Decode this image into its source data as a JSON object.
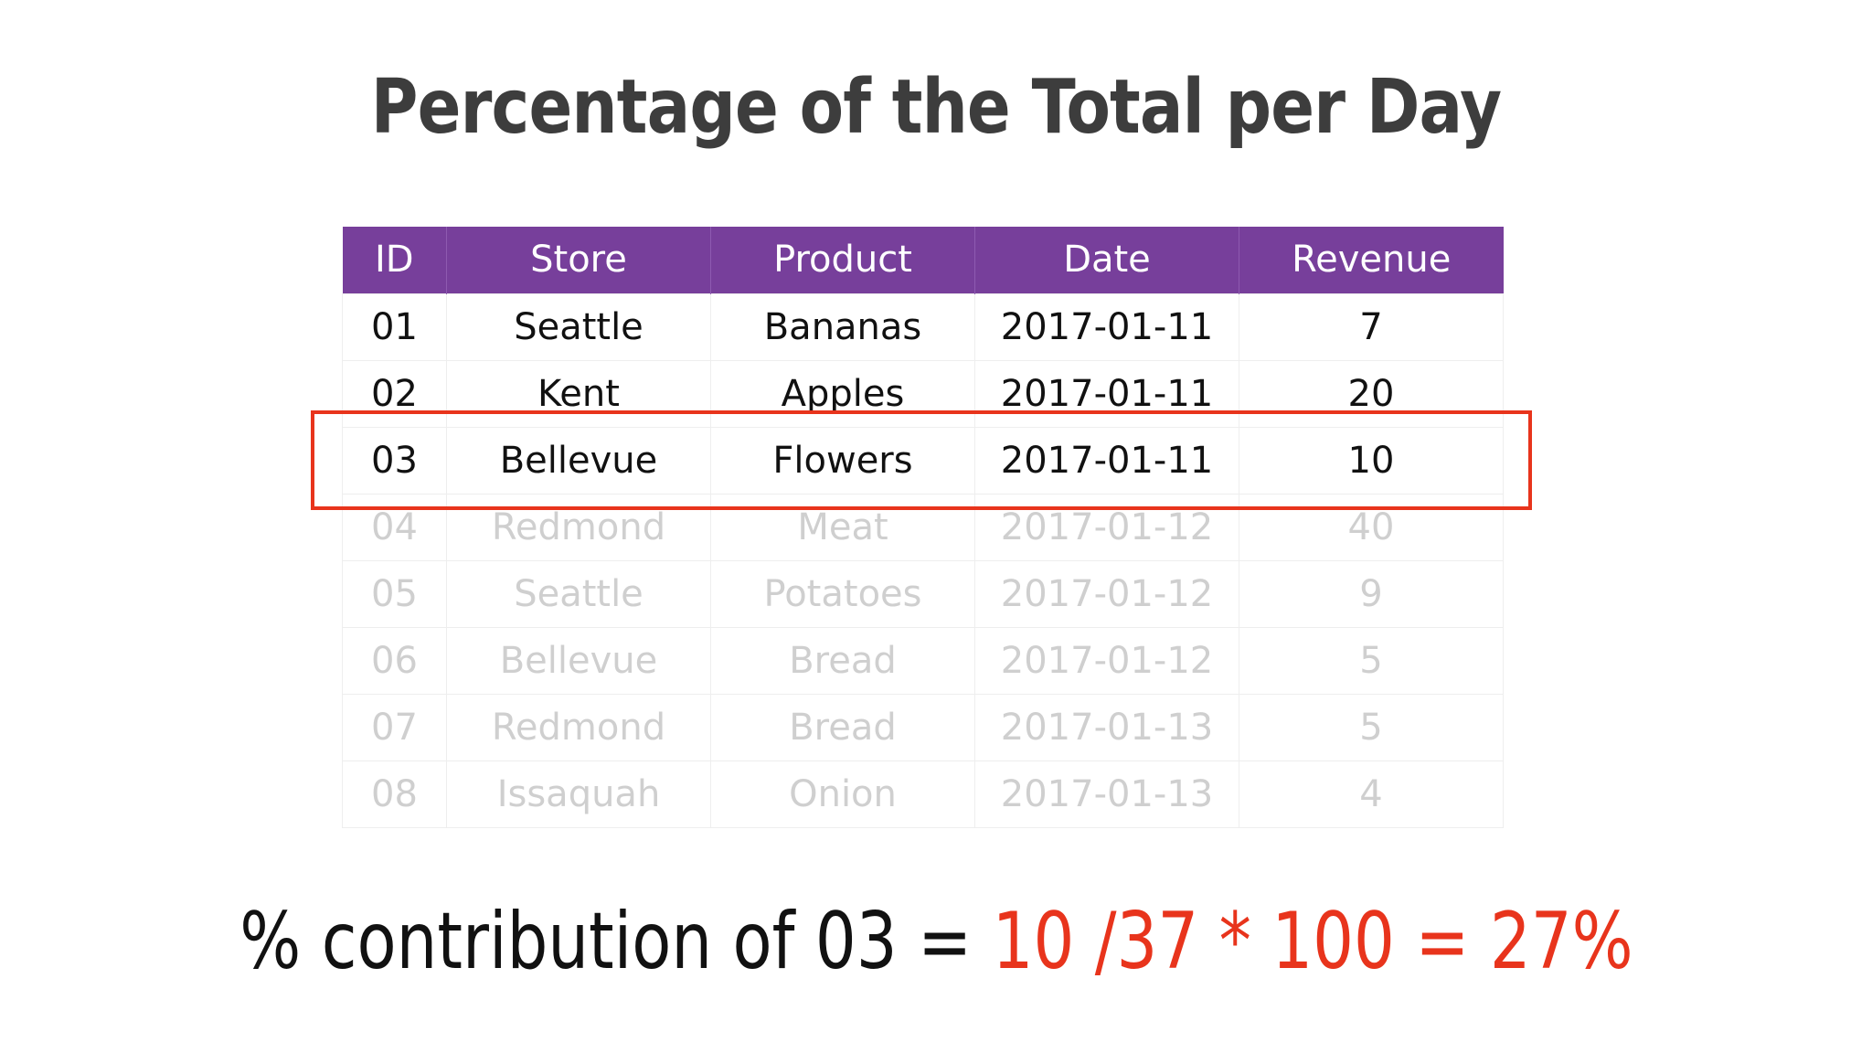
{
  "title": "Percentage of the Total per Day",
  "table": {
    "columns": [
      "ID",
      "Store",
      "Product",
      "Date",
      "Revenue"
    ],
    "rows": [
      [
        "01",
        "Seattle",
        "Bananas",
        "2017-01-11",
        "7"
      ],
      [
        "02",
        "Kent",
        "Apples",
        "2017-01-11",
        "20"
      ],
      [
        "03",
        "Bellevue",
        "Flowers",
        "2017-01-11",
        "10"
      ],
      [
        "04",
        "Redmond",
        "Meat",
        "2017-01-12",
        "40"
      ],
      [
        "05",
        "Seattle",
        "Potatoes",
        "2017-01-12",
        "9"
      ],
      [
        "06",
        "Bellevue",
        "Bread",
        "2017-01-12",
        "5"
      ],
      [
        "07",
        "Redmond",
        "Bread",
        "2017-01-13",
        "5"
      ],
      [
        "08",
        "Issaquah",
        "Onion",
        "2017-01-13",
        "4"
      ]
    ],
    "highlighted_row": "03"
  },
  "formula": {
    "lhs": "% contribution of 03 =",
    "rhs": "10 /37 * 100 = 27%"
  },
  "colors": {
    "header_bg": "#773f9b",
    "highlight": "#e8341c",
    "title": "#3d3d3d",
    "faded_text": "#cfcfcf"
  }
}
